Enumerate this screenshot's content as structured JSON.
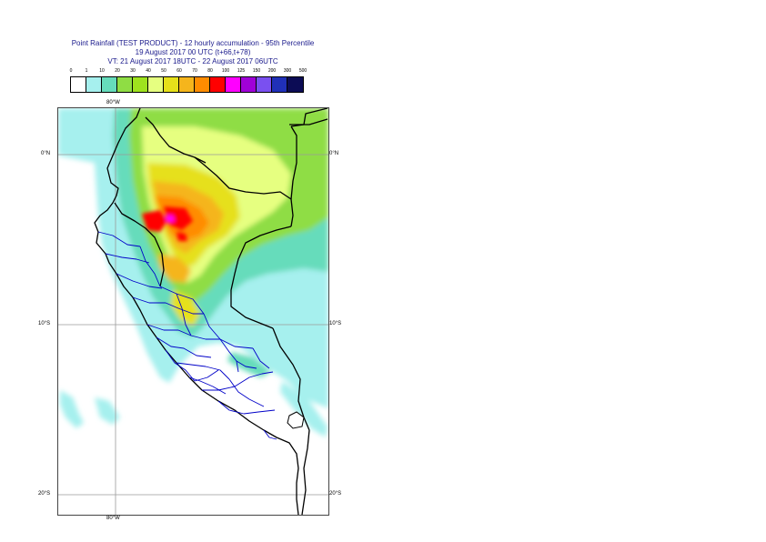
{
  "title": {
    "line1": "Point Rainfall (TEST PRODUCT) - 12 hourly accumulation - 95th Percentile",
    "line2": "19 August 2017 00 UTC (t+66,t+78)",
    "line3": "VT: 21 August 2017 18UTC - 22 August 2017 06UTC"
  },
  "legend": {
    "labels": [
      "0",
      "1",
      "10",
      "20",
      "30",
      "40",
      "50",
      "60",
      "70",
      "80",
      "100",
      "125",
      "150",
      "200",
      "300",
      "500"
    ],
    "colors": [
      "#ffffff",
      "#a6f0ee",
      "#66dcbb",
      "#8fdd44",
      "#9ee21e",
      "#e6ff80",
      "#e6e01a",
      "#f5b51c",
      "#ff8c00",
      "#ff0000",
      "#ff00ff",
      "#a000d8",
      "#7a50f0",
      "#2030b8",
      "#0c0c55"
    ]
  },
  "map": {
    "lon_labels": [
      "80°W",
      "80°W"
    ],
    "lat_labels_left": [
      "0°N",
      "10°S",
      "20°S"
    ],
    "lat_labels_right": [
      "0°N",
      "10°S",
      "20°S"
    ],
    "colors": {
      "grid": "#9a9a9a",
      "coast": "#000000",
      "borders": "#0000c8"
    }
  }
}
